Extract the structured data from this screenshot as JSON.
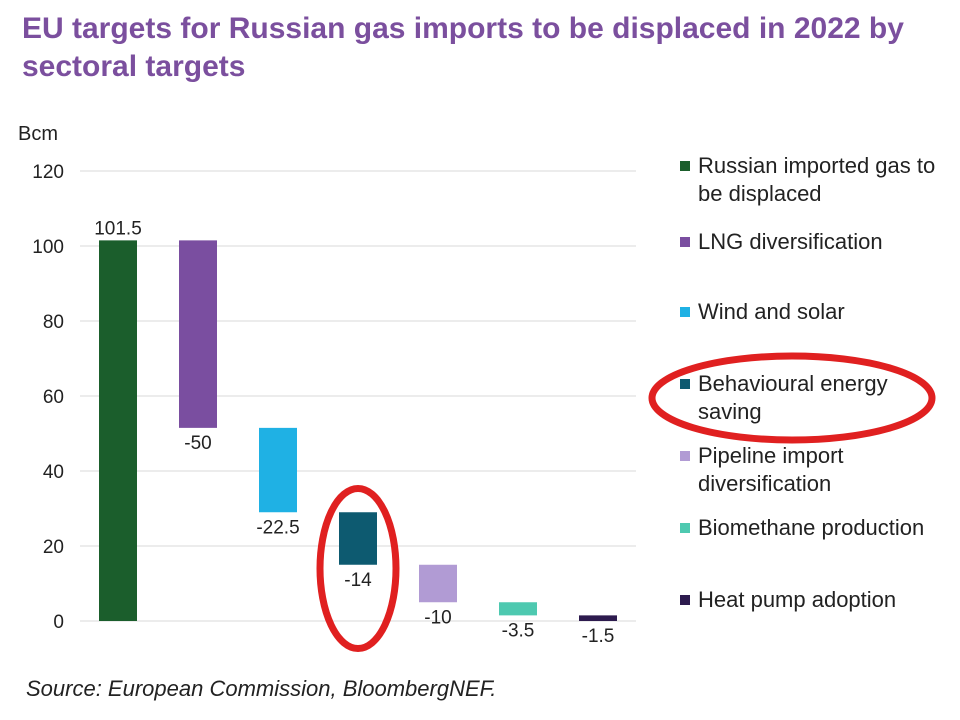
{
  "title": "EU targets for Russian gas imports to be displaced in 2022 by sectoral targets",
  "source": "Source: European Commission, BloombergNEF.",
  "colors": {
    "title": "#7B4F9E",
    "grid": "#d9d9d9",
    "axis_text": "#222222",
    "highlight": "#e02020"
  },
  "chart_data": {
    "type": "bar",
    "subtype": "waterfall",
    "ylabel": "Bcm",
    "ylim": [
      0,
      120
    ],
    "yticks": [
      0,
      20,
      40,
      60,
      80,
      100,
      120
    ],
    "categories": [
      "Russian imported gas to be displaced",
      "LNG diversification",
      "Wind and solar",
      "Behavioural energy saving",
      "Pipeline import diversification",
      "Biomethane production",
      "Heat pump adoption"
    ],
    "values": [
      101.5,
      -50,
      -22.5,
      -14,
      -10,
      -3.5,
      -1.5
    ],
    "data_labels": [
      "101.5",
      "-50",
      "-22.5",
      "-14",
      "-10",
      "-3.5",
      "-1.5"
    ],
    "colors": [
      "#1b5e2c",
      "#7a4ea0",
      "#1fb1e4",
      "#0d5a70",
      "#b19bd4",
      "#4ec9b0",
      "#2d1b4e"
    ],
    "grid": true,
    "legend_position": "right",
    "highlighted": [
      "Behavioural energy saving"
    ]
  }
}
